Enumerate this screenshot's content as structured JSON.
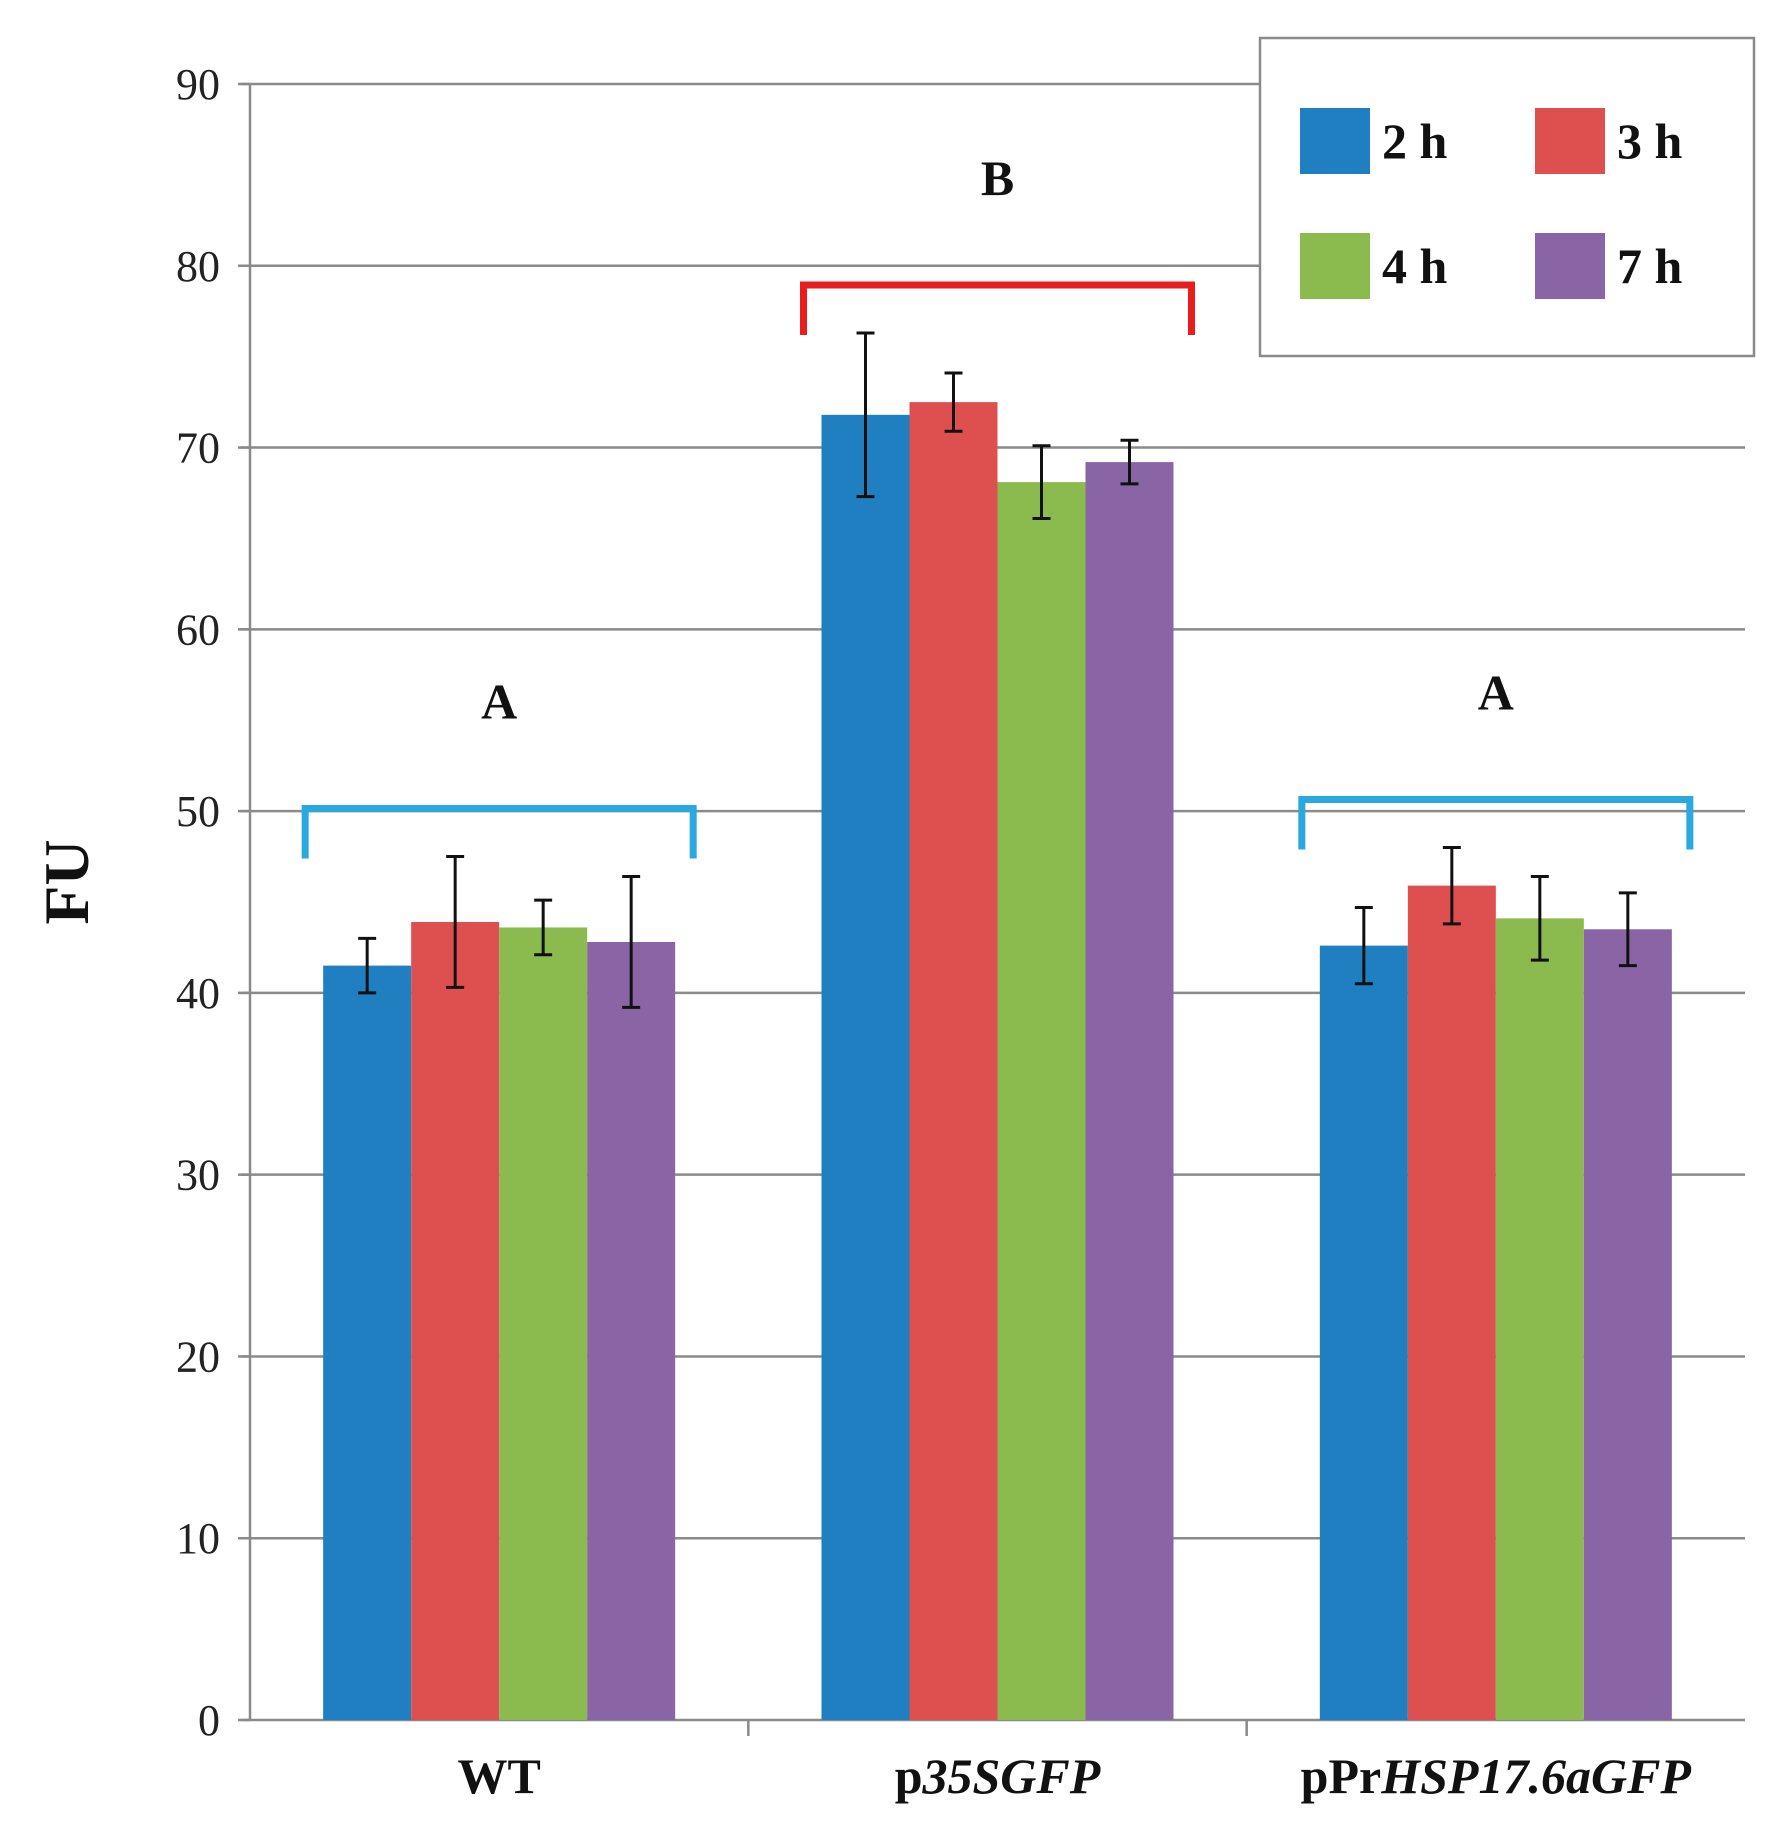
{
  "chart_data": {
    "type": "bar",
    "title": "",
    "xlabel": "",
    "ylabel": "FU",
    "ylim": [
      0,
      90
    ],
    "yticks": [
      0,
      10,
      20,
      30,
      40,
      50,
      60,
      70,
      80,
      90
    ],
    "grid": "horizontal",
    "legend_position": "top-right",
    "categories": [
      {
        "parts": [
          {
            "text": "WT",
            "italic": false
          }
        ]
      },
      {
        "parts": [
          {
            "text": "p",
            "italic": false
          },
          {
            "text": "35SGFP",
            "italic": true
          }
        ]
      },
      {
        "parts": [
          {
            "text": "pPr",
            "italic": false
          },
          {
            "text": "HSP17.6aGFP",
            "italic": true
          }
        ]
      }
    ],
    "series": [
      {
        "name": "2 h",
        "color": "#1f7fc0",
        "values": [
          41.5,
          71.8,
          42.6
        ],
        "errors": [
          1.5,
          4.5,
          2.1
        ]
      },
      {
        "name": "3 h",
        "color": "#de5050",
        "values": [
          43.9,
          72.5,
          45.9
        ],
        "errors": [
          3.6,
          1.6,
          2.1
        ]
      },
      {
        "name": "4 h",
        "color": "#8bbb4e",
        "values": [
          43.6,
          68.1,
          44.1
        ],
        "errors": [
          1.5,
          2.0,
          2.3
        ]
      },
      {
        "name": "7 h",
        "color": "#8965a6",
        "values": [
          42.8,
          69.2,
          43.5
        ],
        "errors": [
          3.6,
          1.2,
          2.0
        ]
      }
    ],
    "annotations": [
      {
        "letter": "A",
        "category": 0,
        "bracket_color": "#2aa8e0"
      },
      {
        "letter": "B",
        "category": 1,
        "bracket_color": "#e81e1e"
      },
      {
        "letter": "A",
        "category": 2,
        "bracket_color": "#2aa8e0"
      }
    ]
  }
}
